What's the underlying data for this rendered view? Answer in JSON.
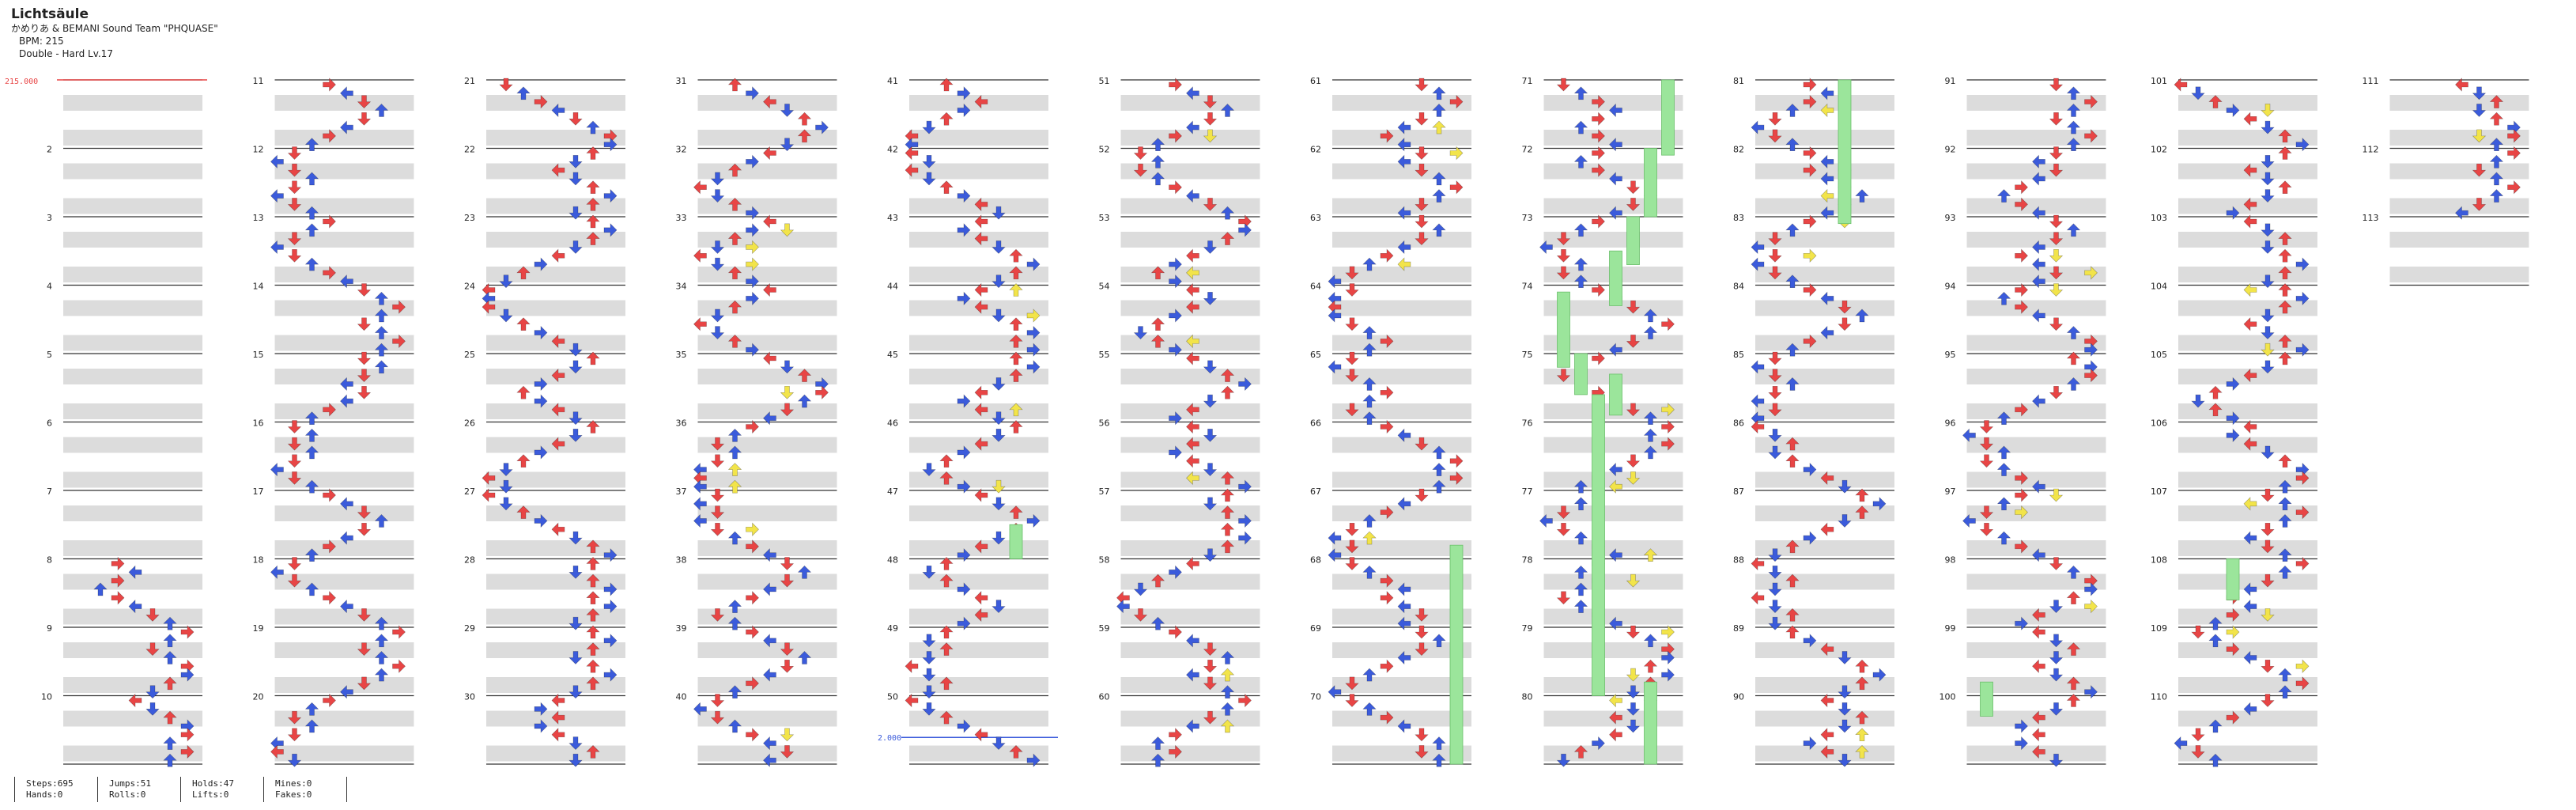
{
  "song": {
    "title": "Lichtsäule",
    "artist": "かめりあ & BEMANI Sound Team \"PHQUASE\"",
    "bpm_line": "BPM: 215",
    "difficulty_line": "Double - Hard Lv.17"
  },
  "markers": {
    "bpm_start": "215.000",
    "speed_change": "2.000"
  },
  "measure_numbers": [
    "2",
    "3",
    "4",
    "5",
    "6",
    "7",
    "8",
    "9",
    "10",
    "11",
    "12",
    "13",
    "14",
    "15",
    "16",
    "17",
    "18",
    "19",
    "20",
    "21",
    "22",
    "23",
    "24",
    "25",
    "26",
    "27",
    "28",
    "29",
    "30",
    "31",
    "32",
    "33",
    "34",
    "35",
    "36",
    "37",
    "38",
    "39",
    "40",
    "41",
    "42",
    "43",
    "44",
    "45",
    "46",
    "47",
    "48",
    "49",
    "50",
    "51",
    "52",
    "53",
    "54",
    "55",
    "56",
    "57",
    "58",
    "59",
    "60",
    "61",
    "62",
    "63",
    "64",
    "65",
    "66",
    "67",
    "68",
    "69",
    "70",
    "71",
    "72",
    "73",
    "74",
    "75",
    "76",
    "77",
    "78",
    "79",
    "80",
    "81",
    "82",
    "83",
    "84",
    "85",
    "86",
    "87",
    "88",
    "89",
    "90",
    "91",
    "92",
    "93",
    "94",
    "95",
    "96",
    "97",
    "98",
    "99",
    "100",
    "101",
    "102",
    "103",
    "104",
    "105",
    "106",
    "107",
    "108",
    "109",
    "110",
    "111",
    "112",
    "113"
  ],
  "colors": {
    "quarter_note": "#e84545",
    "eighth_note": "#3b5bdb",
    "sixteenth_note": "#f2e44a",
    "other_note": "#c33ee0",
    "hold_body": "#9be59b",
    "band": "#dcdcdc"
  },
  "stats": {
    "steps": "Steps:695",
    "hands": "Hands:0",
    "jumps": "Jumps:51",
    "rolls": "Rolls:0",
    "holds": "Holds:47",
    "lifts": "Lifts:0",
    "mines": "Mines:0",
    "fakes": "Fakes:0"
  }
}
